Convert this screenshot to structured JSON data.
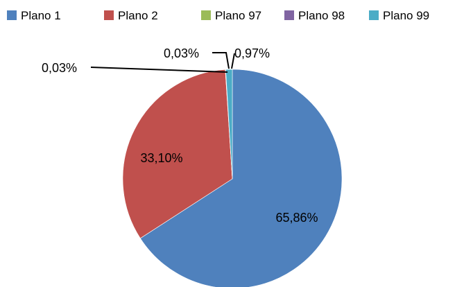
{
  "chart_data": {
    "type": "pie",
    "title": "",
    "legend_position": "top",
    "series": [
      {
        "slices": [
          {
            "label": "Plano 1",
            "value": 65.86,
            "value_label": "65,86%",
            "color": "#4F81BD"
          },
          {
            "label": "Plano 2",
            "value": 33.1,
            "value_label": "33,10%",
            "color": "#C0504D"
          },
          {
            "label": "Plano 97",
            "value": 0.03,
            "value_label": "0,03%",
            "color": "#9BBB59"
          },
          {
            "label": "Plano 98",
            "value": 0.03,
            "value_label": "0,03%",
            "color": "#8064A2"
          },
          {
            "label": "Plano 99",
            "value": 0.97,
            "value_label": "0,97%",
            "color": "#4BACC6"
          }
        ]
      }
    ]
  }
}
